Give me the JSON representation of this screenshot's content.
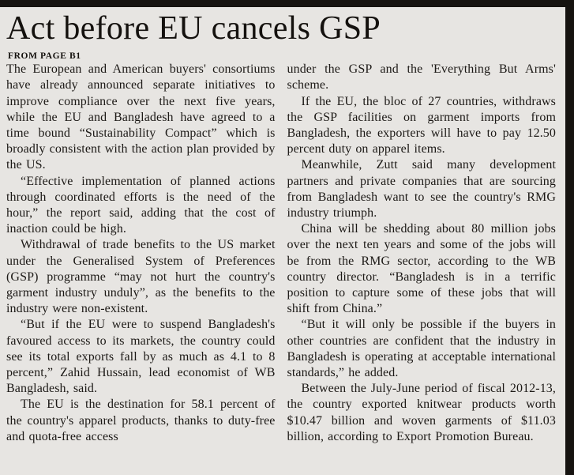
{
  "article": {
    "headline": "Act before EU cancels GSP",
    "kicker": "FROM PAGE B1",
    "left_column": [
      "The European and American buyers' consortiums have already announced separate initiatives to improve compliance over the next five years, while the EU and Bangladesh have agreed to a time bound “Sustainability Compact” which is broadly consistent with the action plan provided by the US.",
      "“Effective implementation of planned actions through coordinated efforts is the need of the hour,” the report said, adding that the cost of inaction could be high.",
      "Withdrawal of trade benefits to the US market under the Generalised System of Preferences (GSP) programme “may not hurt the country's garment industry unduly”, as the benefits to the industry were non-existent.",
      "“But if the EU were to suspend Bangladesh's favoured access to its markets, the country could see its total exports fall by as much as 4.1 to 8 percent,” Zahid Hussain, lead economist of WB Bangladesh, said.",
      "The EU is the destination for 58.1 percent of the country's apparel products, thanks to duty-free and quota-free access"
    ],
    "right_column": [
      "under the GSP and the 'Everything But Arms' scheme.",
      "If the EU, the bloc of 27 countries, withdraws the GSP facilities on garment imports from Bangladesh, the exporters will have to pay 12.50 percent duty on apparel items.",
      "Meanwhile, Zutt said many development partners and private companies that are sourcing from Bangladesh want to see the country's RMG industry triumph.",
      "China will be shedding about 80 million jobs over the next ten years and some of the jobs will be from the RMG sector, according to the WB country director. “Bangladesh is in a terrific position to capture some of these jobs that will shift from China.”",
      "“But it will only be possible if the buyers in other countries are confident that the industry in Bangladesh is operating at acceptable international standards,” he added.",
      "Between the July-June period of fiscal 2012-13, the country exported knitwear products worth $10.47 billion and woven garments of $11.03 billion, according to Export Promotion Bureau."
    ]
  },
  "colors": {
    "paper": "#e7e5e2",
    "ink": "#1c1916",
    "edge": "#161310"
  }
}
